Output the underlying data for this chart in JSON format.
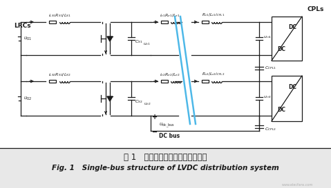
{
  "bg_color": "#e8e8e8",
  "circuit_bg": "#ffffff",
  "circuit_color": "#1a1a1a",
  "line_color": "#4db8e8",
  "title_cn": "图 1   低压直流配电系统单母线结构",
  "title_en": "Fig. 1   Single-bus structure of LVDC distribution system",
  "watermark": "www.elecfans.com",
  "lw": 0.9,
  "blue_lw": 1.8
}
